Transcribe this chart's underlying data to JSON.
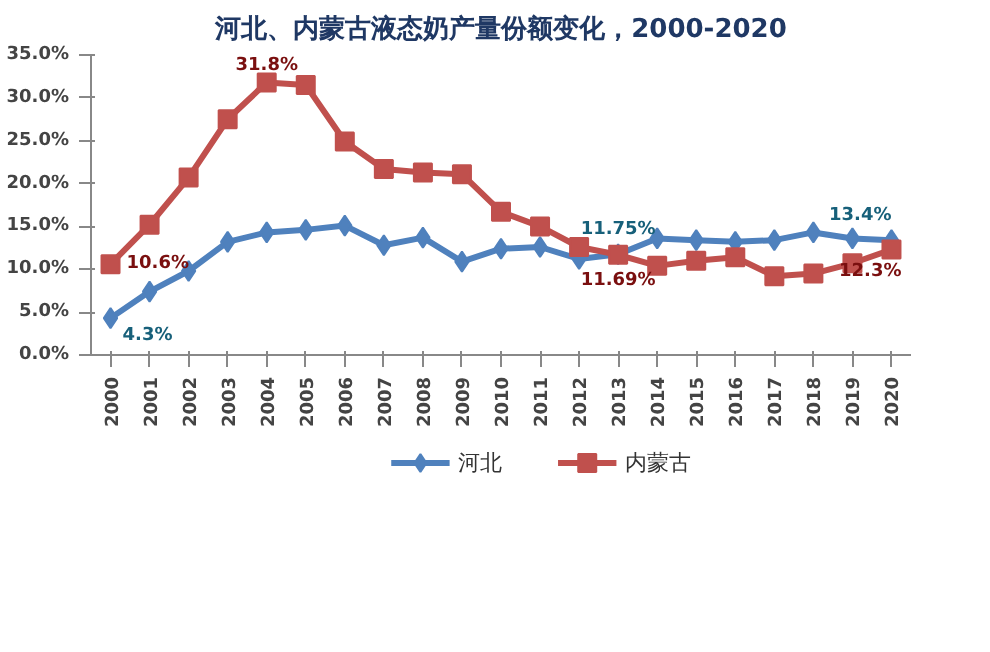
{
  "chart_data": {
    "type": "line",
    "title": "河北、内蒙古液态奶产量份额变化，2000-2020",
    "categories": [
      "2000",
      "2001",
      "2002",
      "2003",
      "2004",
      "2005",
      "2006",
      "2007",
      "2008",
      "2009",
      "2010",
      "2011",
      "2012",
      "2013",
      "2014",
      "2015",
      "2016",
      "2017",
      "2018",
      "2019",
      "2020"
    ],
    "series": [
      {
        "name": "河北",
        "color": "#4f81bd",
        "marker": "diamond",
        "values": [
          4.3,
          7.4,
          9.8,
          13.2,
          14.3,
          14.6,
          15.1,
          12.8,
          13.7,
          10.9,
          12.4,
          12.6,
          11.2,
          11.75,
          13.6,
          13.4,
          13.2,
          13.4,
          14.3,
          13.6,
          13.4
        ],
        "value_labels": [
          "4.3%",
          null,
          null,
          null,
          null,
          null,
          null,
          null,
          null,
          null,
          null,
          null,
          null,
          "11.75%",
          null,
          null,
          null,
          null,
          null,
          null,
          "13.4%"
        ]
      },
      {
        "name": "内蒙古",
        "color": "#c0504d",
        "marker": "square",
        "values": [
          10.6,
          15.2,
          20.7,
          27.5,
          31.8,
          31.5,
          24.9,
          21.7,
          21.3,
          21.1,
          16.7,
          15.0,
          12.6,
          11.69,
          10.4,
          11.0,
          11.4,
          9.2,
          9.5,
          10.7,
          12.3
        ],
        "value_labels": [
          "10.6%",
          null,
          null,
          null,
          "31.8%",
          null,
          null,
          null,
          null,
          null,
          null,
          null,
          null,
          "11.69%",
          null,
          null,
          null,
          null,
          null,
          null,
          "12.3%"
        ]
      }
    ],
    "ylim": [
      0,
      35
    ],
    "yticks": [
      {
        "value": 0,
        "label": "0.0%"
      },
      {
        "value": 5,
        "label": "5.0%"
      },
      {
        "value": 10,
        "label": "10.0%"
      },
      {
        "value": 15,
        "label": "15.0%"
      },
      {
        "value": 20,
        "label": "20.0%"
      },
      {
        "value": 25,
        "label": "25.0%"
      },
      {
        "value": 30,
        "label": "30.0%"
      },
      {
        "value": 35,
        "label": "35.0%"
      }
    ],
    "grid": false,
    "legend": "bottom",
    "line_style": "solid"
  }
}
